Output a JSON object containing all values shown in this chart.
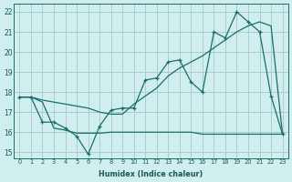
{
  "xlabel": "Humidex (Indice chaleur)",
  "bg_color": "#d0eeee",
  "grid_color": "#aacccc",
  "line_color": "#1a6e6a",
  "xlim": [
    -0.5,
    23.5
  ],
  "ylim": [
    14.7,
    22.4
  ],
  "xticks": [
    0,
    1,
    2,
    3,
    4,
    5,
    6,
    7,
    8,
    9,
    10,
    11,
    12,
    13,
    14,
    15,
    16,
    17,
    18,
    19,
    20,
    21,
    22,
    23
  ],
  "yticks": [
    15,
    16,
    17,
    18,
    19,
    20,
    21,
    22
  ],
  "line1_x": [
    0,
    1,
    2,
    3,
    4,
    5,
    6,
    7,
    8,
    9,
    10,
    11,
    12,
    13,
    14,
    15,
    16,
    17,
    18,
    19,
    20,
    21,
    22,
    23
  ],
  "line1_y": [
    17.75,
    17.75,
    16.5,
    16.5,
    16.2,
    15.8,
    14.9,
    16.3,
    17.1,
    17.2,
    17.2,
    18.6,
    18.7,
    19.5,
    19.6,
    18.5,
    18.0,
    21.0,
    20.7,
    22.0,
    21.5,
    21.0,
    17.8,
    15.9
  ],
  "line2_x": [
    0,
    1,
    2,
    3,
    4,
    5,
    6,
    7,
    8,
    9,
    10,
    11,
    12,
    13,
    14,
    15,
    16,
    17,
    18,
    19,
    20,
    21,
    22,
    23
  ],
  "line2_y": [
    17.75,
    17.75,
    17.6,
    17.5,
    17.4,
    17.3,
    17.2,
    17.0,
    16.9,
    16.9,
    17.4,
    17.8,
    18.2,
    18.8,
    19.2,
    19.5,
    19.8,
    20.2,
    20.6,
    21.0,
    21.3,
    21.5,
    21.3,
    15.9
  ],
  "line3_x": [
    0,
    1,
    2,
    3,
    4,
    5,
    6,
    7,
    8,
    9,
    10,
    11,
    12,
    13,
    14,
    15,
    16,
    17,
    18,
    19,
    20,
    21,
    22,
    23
  ],
  "line3_y": [
    17.75,
    17.75,
    17.5,
    16.2,
    16.1,
    15.95,
    15.95,
    15.95,
    16.0,
    16.0,
    16.0,
    16.0,
    16.0,
    16.0,
    16.0,
    16.0,
    15.9,
    15.9,
    15.9,
    15.9,
    15.9,
    15.9,
    15.9,
    15.9
  ]
}
